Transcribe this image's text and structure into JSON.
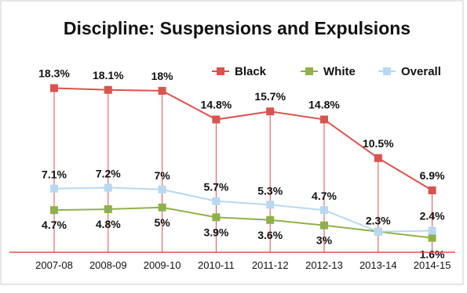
{
  "chart_data": {
    "type": "line",
    "title": "Discipline: Suspensions and Expulsions",
    "categories": [
      "2007-08",
      "2008-09",
      "2009-10",
      "2010-11",
      "2011-12",
      "2012-13",
      "2013-14",
      "2014-15"
    ],
    "series": [
      {
        "name": "Black",
        "color": "#d9534f",
        "values": [
          18.3,
          18.1,
          18,
          14.8,
          15.7,
          14.8,
          10.5,
          6.9
        ],
        "labels": [
          "18.3%",
          "18.1%",
          "18%",
          "14.8%",
          "15.7%",
          "14.8%",
          "10.5%",
          "6.9%"
        ]
      },
      {
        "name": "White",
        "color": "#8fb04a",
        "values": [
          4.7,
          4.8,
          5,
          3.9,
          3.6,
          3,
          2.3,
          1.6
        ],
        "labels": [
          "4.7%",
          "4.8%",
          "5%",
          "3.9%",
          "3.6%",
          "3%",
          "2.3%",
          "1.6%"
        ]
      },
      {
        "name": "Overall",
        "color": "#b7d8f0",
        "values": [
          7.1,
          7.2,
          7,
          5.7,
          5.3,
          4.7,
          2.3,
          2.4
        ],
        "labels": [
          "7.1%",
          "7.2%",
          "7%",
          "5.7%",
          "5.3%",
          "4.7%",
          "",
          "2.4%"
        ]
      }
    ],
    "ylim": [
      0,
      20
    ],
    "grid": false,
    "legend": "top-right",
    "drop_line_color": "#d9534f",
    "axis_color": "#d9534f",
    "frame_color": "#cccccc"
  }
}
